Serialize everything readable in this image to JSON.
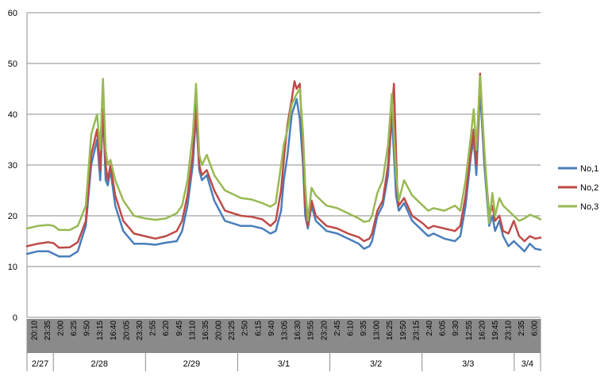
{
  "chart_data": {
    "type": "line",
    "title": "",
    "xlabel": "",
    "ylabel": "",
    "ylim": [
      0,
      60
    ],
    "yticks": [
      0,
      10,
      20,
      30,
      40,
      50,
      60
    ],
    "grid": "horizontal",
    "legend_position": "right",
    "x_time_labels": [
      "20:10",
      "23:35",
      "2:00",
      "6:25",
      "9:50",
      "13:15",
      "16:40",
      "20:05",
      "23:30",
      "2:55",
      "6:20",
      "9:45",
      "13:10",
      "16:35",
      "20:00",
      "23:25",
      "2:50",
      "6:15",
      "9:40",
      "13:05",
      "16:30",
      "19:55",
      "23:20",
      "2:45",
      "6:10",
      "9:35",
      "13:00",
      "16:25",
      "19:50",
      "23:15",
      "2:40",
      "6:05",
      "9:30",
      "12:55",
      "16:20",
      "19:45",
      "23:10",
      "2:35",
      "6:00"
    ],
    "x_date_labels": [
      "2/27",
      "2/28",
      "2/29",
      "3/1",
      "3/2",
      "3/3",
      "3/4"
    ],
    "x_hours": [
      0,
      96
    ],
    "series": [
      {
        "name": "No,1",
        "color": "#4a7ebb",
        "points": [
          [
            0,
            12.5
          ],
          [
            2,
            13
          ],
          [
            4,
            13
          ],
          [
            6,
            12
          ],
          [
            8,
            12
          ],
          [
            9.5,
            13
          ],
          [
            11,
            18
          ],
          [
            12,
            30
          ],
          [
            13.1,
            35
          ],
          [
            13.7,
            27
          ],
          [
            14.2,
            41
          ],
          [
            14.7,
            27
          ],
          [
            15.1,
            26
          ],
          [
            15.6,
            29
          ],
          [
            16.5,
            22
          ],
          [
            18,
            17
          ],
          [
            20,
            14.5
          ],
          [
            22,
            14.5
          ],
          [
            24,
            14.3
          ],
          [
            26,
            14.7
          ],
          [
            28,
            15
          ],
          [
            29,
            17
          ],
          [
            30,
            22
          ],
          [
            31,
            30
          ],
          [
            31.6,
            40
          ],
          [
            32.2,
            29
          ],
          [
            32.7,
            27
          ],
          [
            33.6,
            28
          ],
          [
            35,
            23
          ],
          [
            37,
            19
          ],
          [
            40,
            18
          ],
          [
            42,
            18
          ],
          [
            44,
            17.5
          ],
          [
            45.5,
            16.5
          ],
          [
            46.5,
            17
          ],
          [
            47.5,
            21
          ],
          [
            48,
            27
          ],
          [
            48.7,
            32
          ],
          [
            49.5,
            40
          ],
          [
            50.4,
            43
          ],
          [
            51,
            39
          ],
          [
            51.6,
            30
          ],
          [
            52,
            20
          ],
          [
            52.5,
            17.5
          ],
          [
            53.2,
            22
          ],
          [
            54,
            19
          ],
          [
            56,
            17
          ],
          [
            58,
            16.5
          ],
          [
            60,
            15.5
          ],
          [
            62,
            14.5
          ],
          [
            63,
            13.5
          ],
          [
            64,
            14
          ],
          [
            64.5,
            15
          ],
          [
            65.5,
            20
          ],
          [
            66.5,
            22
          ],
          [
            67.5,
            28
          ],
          [
            68.2,
            40
          ],
          [
            69,
            24
          ],
          [
            69.5,
            21
          ],
          [
            70.5,
            22.5
          ],
          [
            72,
            19
          ],
          [
            74,
            17
          ],
          [
            75,
            16
          ],
          [
            76,
            16.5
          ],
          [
            78,
            15.5
          ],
          [
            80,
            15
          ],
          [
            81,
            16
          ],
          [
            82,
            22
          ],
          [
            83,
            32
          ],
          [
            83.5,
            35
          ],
          [
            84,
            28
          ],
          [
            84.7,
            45
          ],
          [
            85.5,
            30
          ],
          [
            86.4,
            18
          ],
          [
            87,
            20
          ],
          [
            87.5,
            17
          ],
          [
            88.3,
            19
          ],
          [
            89,
            16
          ],
          [
            90,
            14
          ],
          [
            91,
            15
          ],
          [
            92,
            14
          ],
          [
            93,
            13
          ],
          [
            94,
            14.5
          ],
          [
            95,
            13.5
          ],
          [
            96,
            13.3
          ]
        ]
      },
      {
        "name": "No,2",
        "color": "#be4b48",
        "points": [
          [
            0,
            14
          ],
          [
            2,
            14.5
          ],
          [
            4,
            14.8
          ],
          [
            5,
            14.6
          ],
          [
            6,
            13.7
          ],
          [
            8,
            13.8
          ],
          [
            9.5,
            14.8
          ],
          [
            11,
            19
          ],
          [
            12,
            32
          ],
          [
            13.1,
            37
          ],
          [
            13.7,
            29
          ],
          [
            14.2,
            41
          ],
          [
            14.7,
            30
          ],
          [
            15.1,
            27
          ],
          [
            15.6,
            30
          ],
          [
            16.5,
            24
          ],
          [
            18,
            19
          ],
          [
            20,
            16.5
          ],
          [
            22,
            16
          ],
          [
            24,
            15.5
          ],
          [
            26,
            16
          ],
          [
            28,
            17
          ],
          [
            29,
            19
          ],
          [
            30,
            24
          ],
          [
            31,
            32
          ],
          [
            31.6,
            42
          ],
          [
            32.2,
            30
          ],
          [
            32.7,
            28
          ],
          [
            33.6,
            29
          ],
          [
            35,
            25
          ],
          [
            37,
            21
          ],
          [
            40,
            20
          ],
          [
            42,
            19.8
          ],
          [
            44,
            19.3
          ],
          [
            45.5,
            18
          ],
          [
            46.5,
            19
          ],
          [
            47.5,
            25
          ],
          [
            48,
            31
          ],
          [
            48.7,
            38
          ],
          [
            49.5,
            43
          ],
          [
            50,
            46.5
          ],
          [
            50.4,
            45
          ],
          [
            51,
            46
          ],
          [
            51.6,
            33
          ],
          [
            52,
            22
          ],
          [
            52.5,
            18
          ],
          [
            53.2,
            23
          ],
          [
            54,
            20
          ],
          [
            56,
            18
          ],
          [
            58,
            17.5
          ],
          [
            60,
            16.5
          ],
          [
            62,
            15.8
          ],
          [
            63,
            15
          ],
          [
            64,
            15.5
          ],
          [
            64.5,
            16.5
          ],
          [
            65.5,
            21
          ],
          [
            66.5,
            23
          ],
          [
            67.5,
            30
          ],
          [
            68.6,
            46
          ],
          [
            69.2,
            25
          ],
          [
            69.5,
            22
          ],
          [
            70.5,
            23.5
          ],
          [
            72,
            20
          ],
          [
            74,
            18.5
          ],
          [
            75,
            17.5
          ],
          [
            76,
            18
          ],
          [
            78,
            17.5
          ],
          [
            80,
            17
          ],
          [
            81,
            18
          ],
          [
            82,
            24
          ],
          [
            83,
            33
          ],
          [
            83.5,
            37
          ],
          [
            84,
            30
          ],
          [
            84.7,
            48
          ],
          [
            85.5,
            32
          ],
          [
            86.4,
            20
          ],
          [
            87,
            22
          ],
          [
            87.5,
            19
          ],
          [
            88.3,
            20
          ],
          [
            89,
            17
          ],
          [
            90,
            16.5
          ],
          [
            91,
            19
          ],
          [
            92,
            16
          ],
          [
            93,
            15
          ],
          [
            94,
            16
          ],
          [
            95,
            15.5
          ],
          [
            96,
            15.7
          ]
        ]
      },
      {
        "name": "No,3",
        "color": "#98b954",
        "points": [
          [
            0,
            17.5
          ],
          [
            2,
            18
          ],
          [
            4,
            18.2
          ],
          [
            5,
            18
          ],
          [
            6,
            17.2
          ],
          [
            8,
            17.2
          ],
          [
            9.5,
            18
          ],
          [
            11,
            22
          ],
          [
            12,
            36
          ],
          [
            13.1,
            40
          ],
          [
            13.7,
            33
          ],
          [
            14.2,
            47
          ],
          [
            14.7,
            33
          ],
          [
            15.1,
            30
          ],
          [
            15.6,
            31
          ],
          [
            16.5,
            27
          ],
          [
            18,
            23
          ],
          [
            20,
            20
          ],
          [
            22,
            19.5
          ],
          [
            24,
            19.2
          ],
          [
            26,
            19.5
          ],
          [
            28,
            20.5
          ],
          [
            29,
            22
          ],
          [
            30,
            27
          ],
          [
            31,
            36
          ],
          [
            31.6,
            46
          ],
          [
            32.2,
            32
          ],
          [
            32.7,
            30
          ],
          [
            33.6,
            32
          ],
          [
            35,
            28
          ],
          [
            37,
            25
          ],
          [
            40,
            23.5
          ],
          [
            42,
            23.2
          ],
          [
            44,
            22.5
          ],
          [
            45.5,
            21.8
          ],
          [
            46.5,
            22.5
          ],
          [
            47.5,
            30
          ],
          [
            48,
            34
          ],
          [
            48.7,
            37
          ],
          [
            49.5,
            42
          ],
          [
            50.4,
            44
          ],
          [
            51,
            45
          ],
          [
            51.6,
            36
          ],
          [
            52,
            26
          ],
          [
            52.5,
            19
          ],
          [
            53.2,
            25.5
          ],
          [
            54,
            24
          ],
          [
            56,
            22
          ],
          [
            58,
            21.5
          ],
          [
            60,
            20.5
          ],
          [
            62,
            19.5
          ],
          [
            63,
            18.8
          ],
          [
            64,
            19
          ],
          [
            64.5,
            20
          ],
          [
            65.5,
            24.5
          ],
          [
            66.5,
            27
          ],
          [
            67.5,
            34
          ],
          [
            68.2,
            44
          ],
          [
            69,
            28
          ],
          [
            69.5,
            23
          ],
          [
            70.5,
            27
          ],
          [
            72,
            24
          ],
          [
            74,
            22
          ],
          [
            75,
            21
          ],
          [
            76,
            21.5
          ],
          [
            78,
            21
          ],
          [
            80,
            22
          ],
          [
            81,
            21
          ],
          [
            82,
            27
          ],
          [
            83,
            36
          ],
          [
            83.5,
            41
          ],
          [
            84,
            33
          ],
          [
            84.7,
            47.5
          ],
          [
            85.5,
            33
          ],
          [
            86.4,
            18.5
          ],
          [
            87,
            24.5
          ],
          [
            87.5,
            20
          ],
          [
            88.3,
            23.5
          ],
          [
            89,
            22
          ],
          [
            90,
            21
          ],
          [
            91,
            20
          ],
          [
            92,
            19
          ],
          [
            93,
            19.5
          ],
          [
            94,
            20.2
          ],
          [
            95,
            19.8
          ],
          [
            96,
            19.3
          ]
        ]
      }
    ]
  }
}
